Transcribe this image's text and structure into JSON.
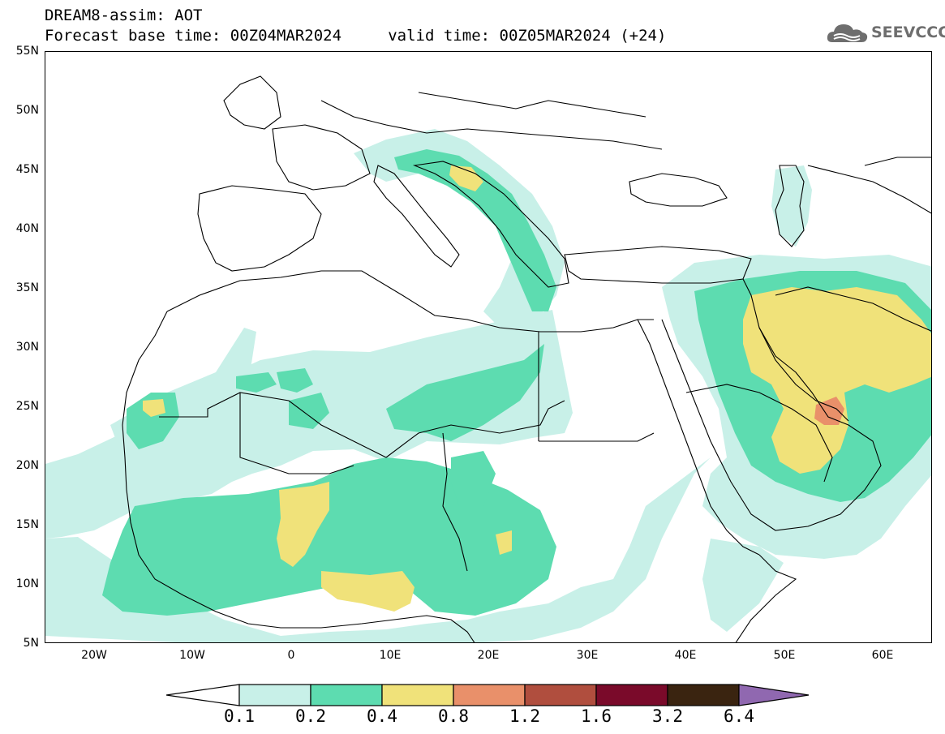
{
  "title": {
    "line1": "DREAM8-assim: AOT",
    "line2": "Forecast base time: 00Z04MAR2024     valid time: 00Z05MAR2024 (+24)"
  },
  "logo": {
    "text": "SEEVCCC",
    "icon": "cloud-icon"
  },
  "axes": {
    "latitudes": [
      "55N",
      "50N",
      "45N",
      "40N",
      "35N",
      "30N",
      "25N",
      "20N",
      "15N",
      "10N",
      "5N"
    ],
    "longitudes": [
      "20W",
      "10W",
      "0",
      "10E",
      "20E",
      "30E",
      "40E",
      "50E",
      "60E"
    ]
  },
  "colorbar": {
    "labels": [
      "0.1",
      "0.2",
      "0.4",
      "0.8",
      "1.2",
      "1.6",
      "3.2",
      "6.4"
    ],
    "colors": [
      "#c8f0e8",
      "#5ddcb0",
      "#f0e27a",
      "#e9906a",
      "#b04e3e",
      "#7a0a2a",
      "#3a2410",
      "#9068b0"
    ],
    "under_color": "#ffffff"
  },
  "colors": {
    "aot_0_1": "#c8f0e8",
    "aot_0_2": "#5ddcb0",
    "aot_0_4": "#f0e27a",
    "aot_0_8": "#e9906a",
    "coastline": "#000000"
  }
}
